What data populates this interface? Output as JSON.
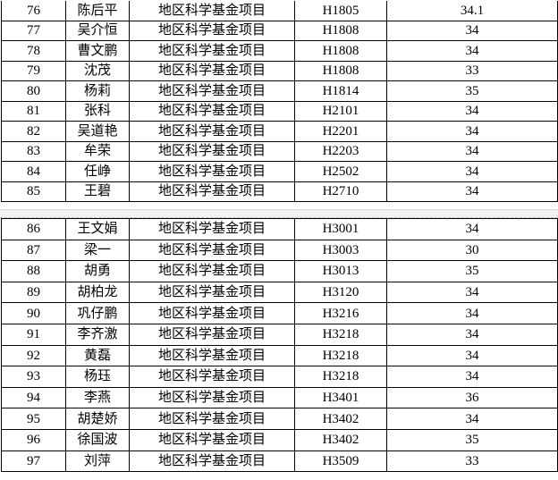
{
  "tables": [
    {
      "rows": [
        {
          "no": "76",
          "name": "陈后平",
          "type": "地区科学基金项目",
          "code": "H1805",
          "score": "34.1"
        },
        {
          "no": "77",
          "name": "吴介恒",
          "type": "地区科学基金项目",
          "code": "H1808",
          "score": "34"
        },
        {
          "no": "78",
          "name": "曹文鹏",
          "type": "地区科学基金项目",
          "code": "H1808",
          "score": "34"
        },
        {
          "no": "79",
          "name": "沈茂",
          "type": "地区科学基金项目",
          "code": "H1808",
          "score": "33"
        },
        {
          "no": "80",
          "name": "杨莉",
          "type": "地区科学基金项目",
          "code": "H1814",
          "score": "35"
        },
        {
          "no": "81",
          "name": "张科",
          "type": "地区科学基金项目",
          "code": "H2101",
          "score": "34"
        },
        {
          "no": "82",
          "name": "吴道艳",
          "type": "地区科学基金项目",
          "code": "H2201",
          "score": "34"
        },
        {
          "no": "83",
          "name": "牟荣",
          "type": "地区科学基金项目",
          "code": "H2203",
          "score": "34"
        },
        {
          "no": "84",
          "name": "任峥",
          "type": "地区科学基金项目",
          "code": "H2502",
          "score": "34"
        },
        {
          "no": "85",
          "name": "王碧",
          "type": "地区科学基金项目",
          "code": "H2710",
          "score": "34"
        }
      ]
    },
    {
      "rows": [
        {
          "no": "86",
          "name": "王文娟",
          "type": "地区科学基金项目",
          "code": "H3001",
          "score": "34"
        },
        {
          "no": "87",
          "name": "梁一",
          "type": "地区科学基金项目",
          "code": "H3003",
          "score": "30"
        },
        {
          "no": "88",
          "name": "胡勇",
          "type": "地区科学基金项目",
          "code": "H3013",
          "score": "35"
        },
        {
          "no": "89",
          "name": "胡柏龙",
          "type": "地区科学基金项目",
          "code": "H3120",
          "score": "34"
        },
        {
          "no": "90",
          "name": "巩仔鹏",
          "type": "地区科学基金项目",
          "code": "H3216",
          "score": "34"
        },
        {
          "no": "91",
          "name": "李齐激",
          "type": "地区科学基金项目",
          "code": "H3218",
          "score": "34"
        },
        {
          "no": "92",
          "name": "黄磊",
          "type": "地区科学基金项目",
          "code": "H3218",
          "score": "34"
        },
        {
          "no": "93",
          "name": "杨珏",
          "type": "地区科学基金项目",
          "code": "H3218",
          "score": "34"
        },
        {
          "no": "94",
          "name": "李燕",
          "type": "地区科学基金项目",
          "code": "H3401",
          "score": "36"
        },
        {
          "no": "95",
          "name": "胡楚娇",
          "type": "地区科学基金项目",
          "code": "H3402",
          "score": "34"
        },
        {
          "no": "96",
          "name": "徐国波",
          "type": "地区科学基金项目",
          "code": "H3402",
          "score": "35"
        },
        {
          "no": "97",
          "name": "刘萍",
          "type": "地区科学基金项目",
          "code": "H3509",
          "score": "33"
        }
      ]
    }
  ]
}
